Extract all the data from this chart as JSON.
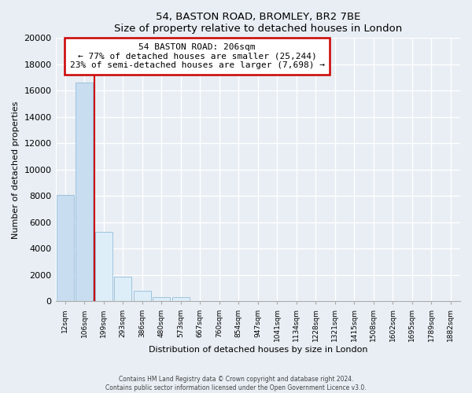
{
  "title": "54, BASTON ROAD, BROMLEY, BR2 7BE",
  "subtitle": "Size of property relative to detached houses in London",
  "xlabel": "Distribution of detached houses by size in London",
  "ylabel": "Number of detached properties",
  "bar_labels": [
    "12sqm",
    "106sqm",
    "199sqm",
    "293sqm",
    "386sqm",
    "480sqm",
    "573sqm",
    "667sqm",
    "760sqm",
    "854sqm",
    "947sqm",
    "1041sqm",
    "1134sqm",
    "1228sqm",
    "1321sqm",
    "1415sqm",
    "1508sqm",
    "1602sqm",
    "1695sqm",
    "1789sqm",
    "1882sqm"
  ],
  "bar_values": [
    8100,
    16600,
    5300,
    1850,
    800,
    300,
    300,
    0,
    0,
    0,
    0,
    0,
    0,
    0,
    0,
    0,
    0,
    0,
    0,
    0,
    0
  ],
  "bar_color_left": "#c8ddf0",
  "bar_color_right": "#ddeef8",
  "bar_edge_color": "#94bcd8",
  "annotation_title": "54 BASTON ROAD: 206sqm",
  "annotation_line1": "← 77% of detached houses are smaller (25,244)",
  "annotation_line2": "23% of semi-detached houses are larger (7,698) →",
  "box_facecolor": "#ffffff",
  "box_edgecolor": "#cc0000",
  "vline_color": "#cc0000",
  "vline_x_index": 1.5,
  "ylim": [
    0,
    20000
  ],
  "yticks": [
    0,
    2000,
    4000,
    6000,
    8000,
    10000,
    12000,
    14000,
    16000,
    18000,
    20000
  ],
  "footer_line1": "Contains HM Land Registry data © Crown copyright and database right 2024.",
  "footer_line2": "Contains public sector information licensed under the Open Government Licence v3.0.",
  "bg_color": "#e8eef4",
  "plot_bg_color": "#e8eef4"
}
